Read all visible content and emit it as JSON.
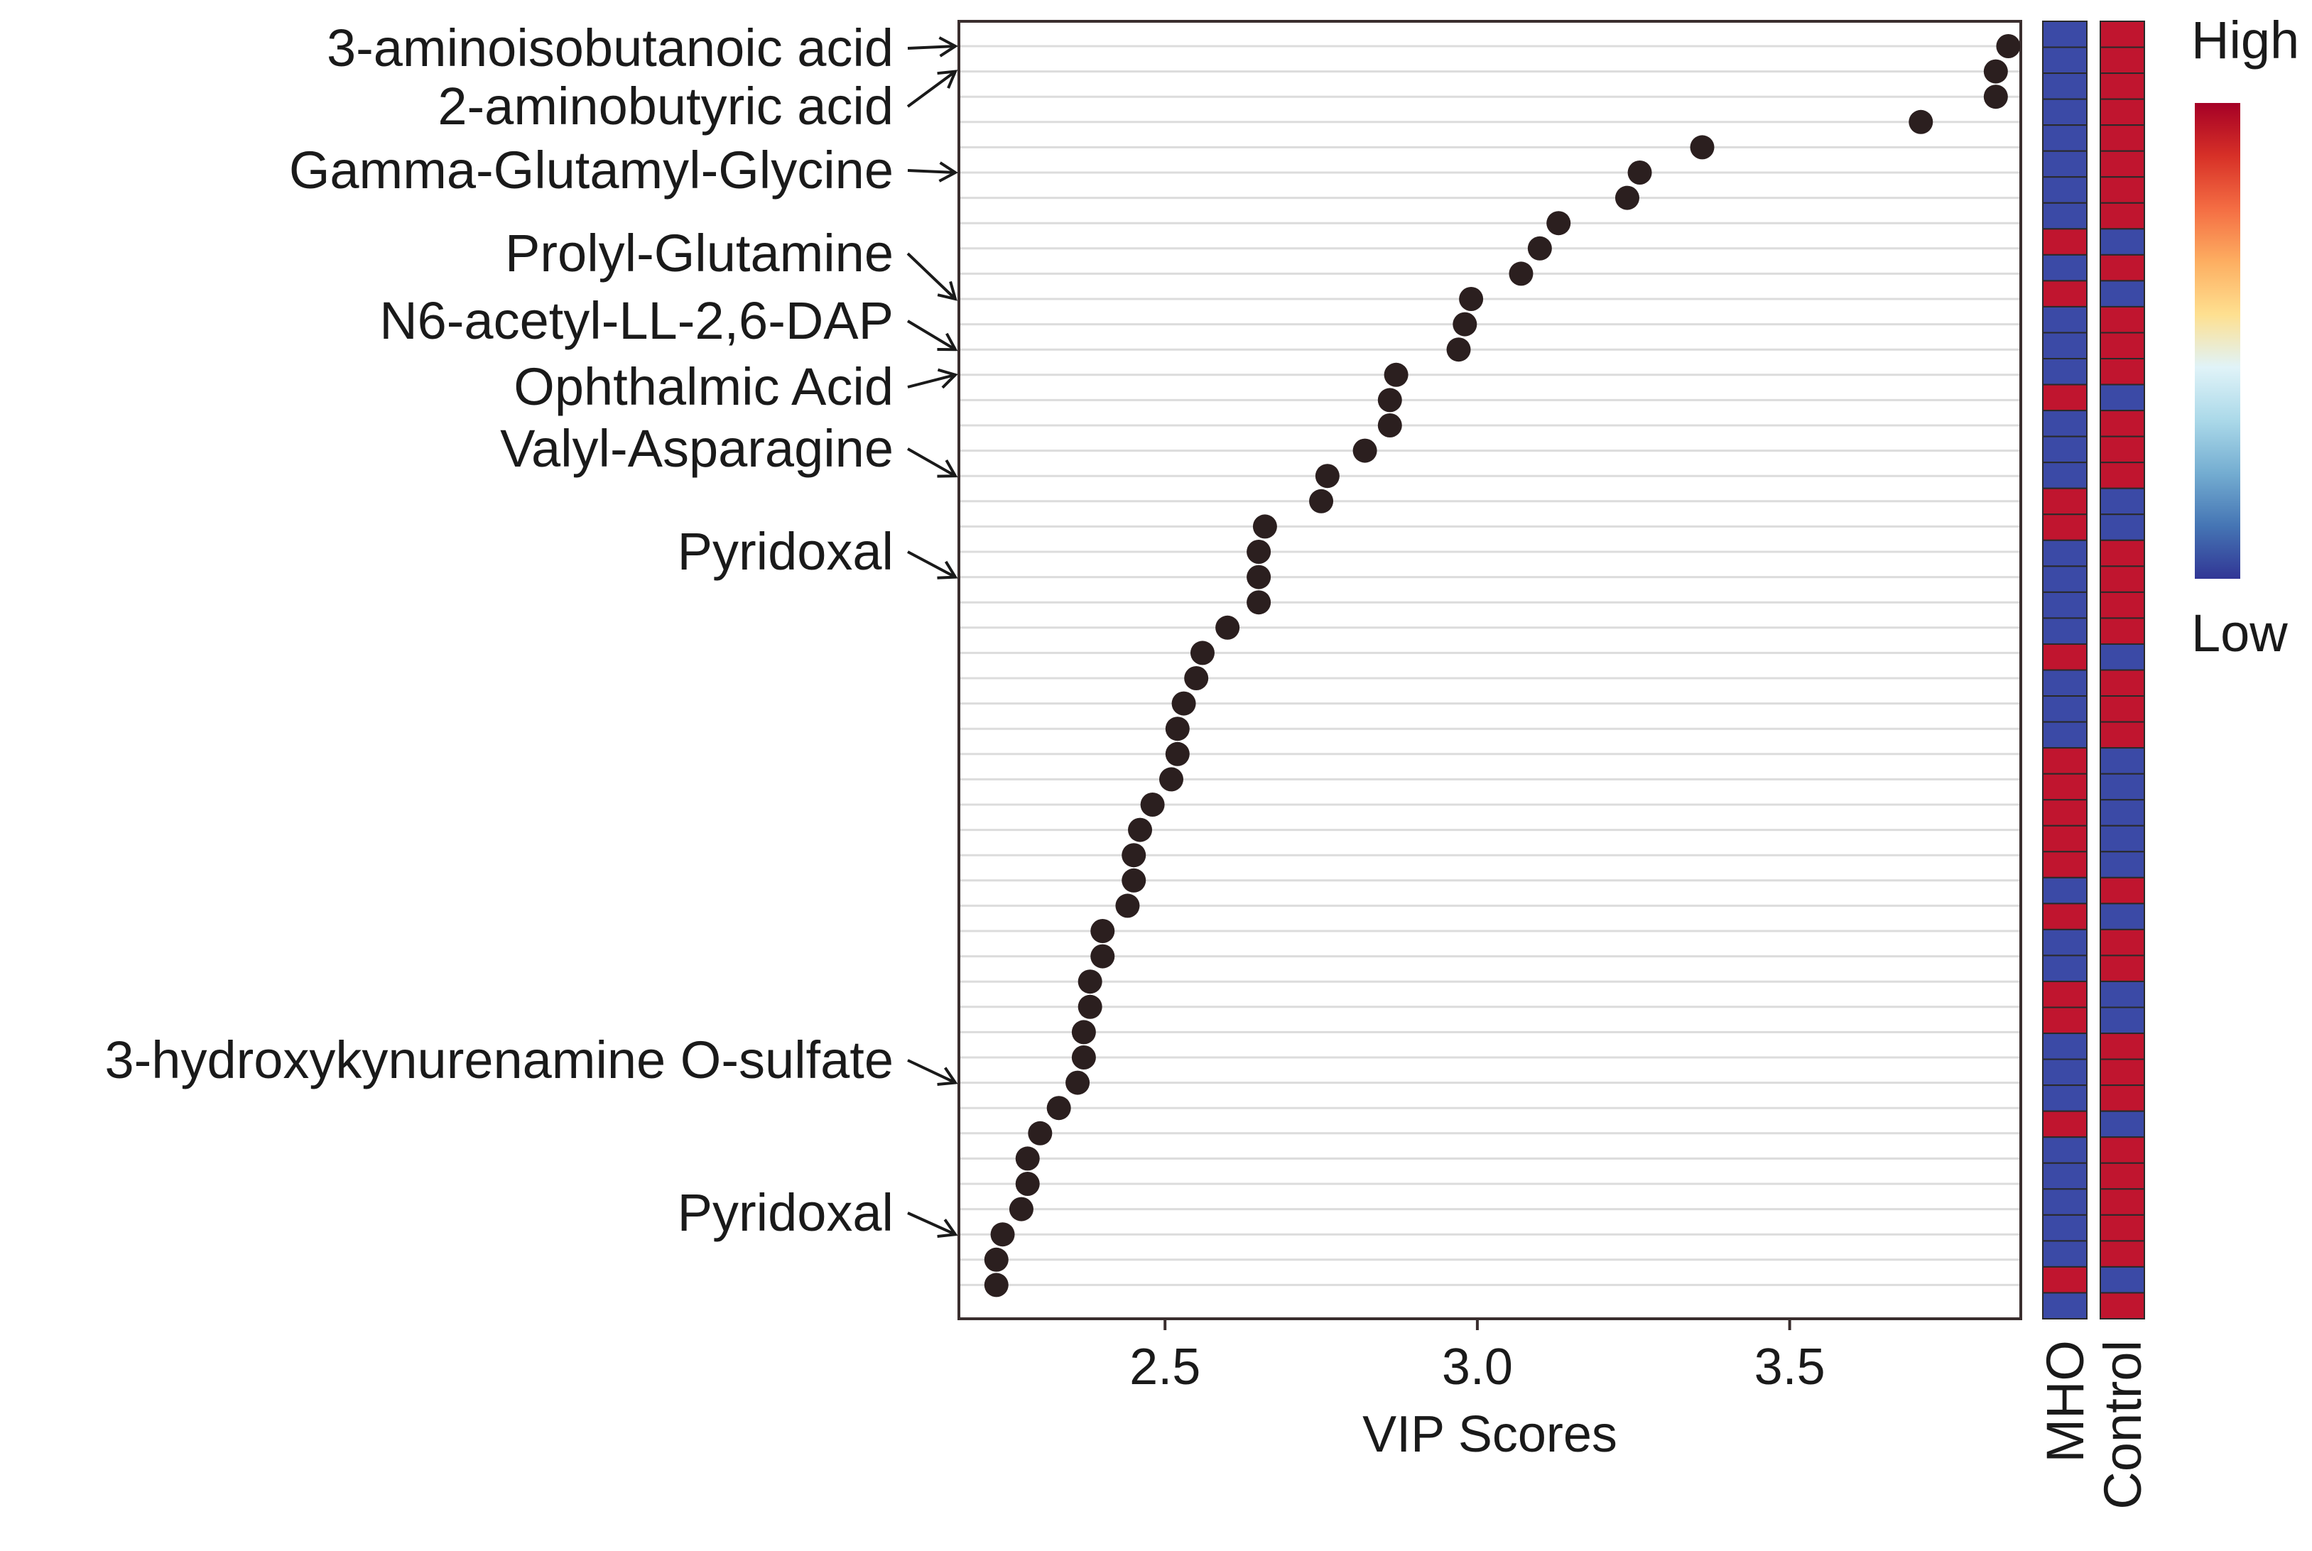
{
  "chart_data": {
    "type": "scatter",
    "title": "",
    "xlabel": "VIP Scores",
    "ylabel": "",
    "xlim": [
      2.17,
      3.87
    ],
    "xticks": [
      2.5,
      3.0,
      3.5
    ],
    "xtick_labels": [
      "2.5",
      "3.0",
      "3.5"
    ],
    "grid": "horizontal",
    "n_rows": 50,
    "vip_scores": [
      3.85,
      3.83,
      3.83,
      3.71,
      3.36,
      3.26,
      3.24,
      3.13,
      3.1,
      3.07,
      2.99,
      2.98,
      2.97,
      2.87,
      2.86,
      2.86,
      2.82,
      2.76,
      2.75,
      2.66,
      2.65,
      2.65,
      2.65,
      2.6,
      2.56,
      2.55,
      2.53,
      2.52,
      2.52,
      2.51,
      2.48,
      2.46,
      2.45,
      2.45,
      2.44,
      2.4,
      2.4,
      2.38,
      2.38,
      2.37,
      2.37,
      2.36,
      2.33,
      2.3,
      2.28,
      2.28,
      2.27,
      2.24,
      2.23,
      2.23
    ],
    "annotations": [
      {
        "label": "3-aminoisobutanoic acid",
        "row": 0
      },
      {
        "label": "2-aminobutyric acid",
        "row": 1
      },
      {
        "label": "Gamma-Glutamyl-Glycine",
        "row": 5
      },
      {
        "label": "Prolyl-Glutamine",
        "row": 10
      },
      {
        "label": "N6-acetyl-LL-2,6-DAP",
        "row": 12
      },
      {
        "label": "Ophthalmic Acid",
        "row": 13
      },
      {
        "label": "Valyl-Asparagine",
        "row": 17
      },
      {
        "label": "Pyridoxal",
        "row": 21
      },
      {
        "label": "3-hydroxykynurenamine O-sulfate",
        "row": 41
      },
      {
        "label": "Pyridoxal",
        "row": 47
      }
    ],
    "heatmap": {
      "columns": [
        "MHO",
        "Control"
      ],
      "levels": [
        "low",
        "high"
      ],
      "mho_high_rows": [
        8,
        10,
        14,
        18,
        19,
        24,
        28,
        29,
        30,
        31,
        32,
        34,
        37,
        38,
        42,
        48
      ],
      "legend": {
        "high_label": "High",
        "low_label": "Low"
      }
    },
    "colors": {
      "point": "#2b1f1f",
      "grid": "#dcdcdc",
      "high": "#c0152f",
      "low": "#3b4aa6",
      "cell_border": "#2a2a2a",
      "colorbar": [
        "#a50026",
        "#d73027",
        "#f46d43",
        "#fdae61",
        "#fee090",
        "#e0f3f8",
        "#abd9e9",
        "#74add1",
        "#4575b4",
        "#313695"
      ]
    }
  }
}
